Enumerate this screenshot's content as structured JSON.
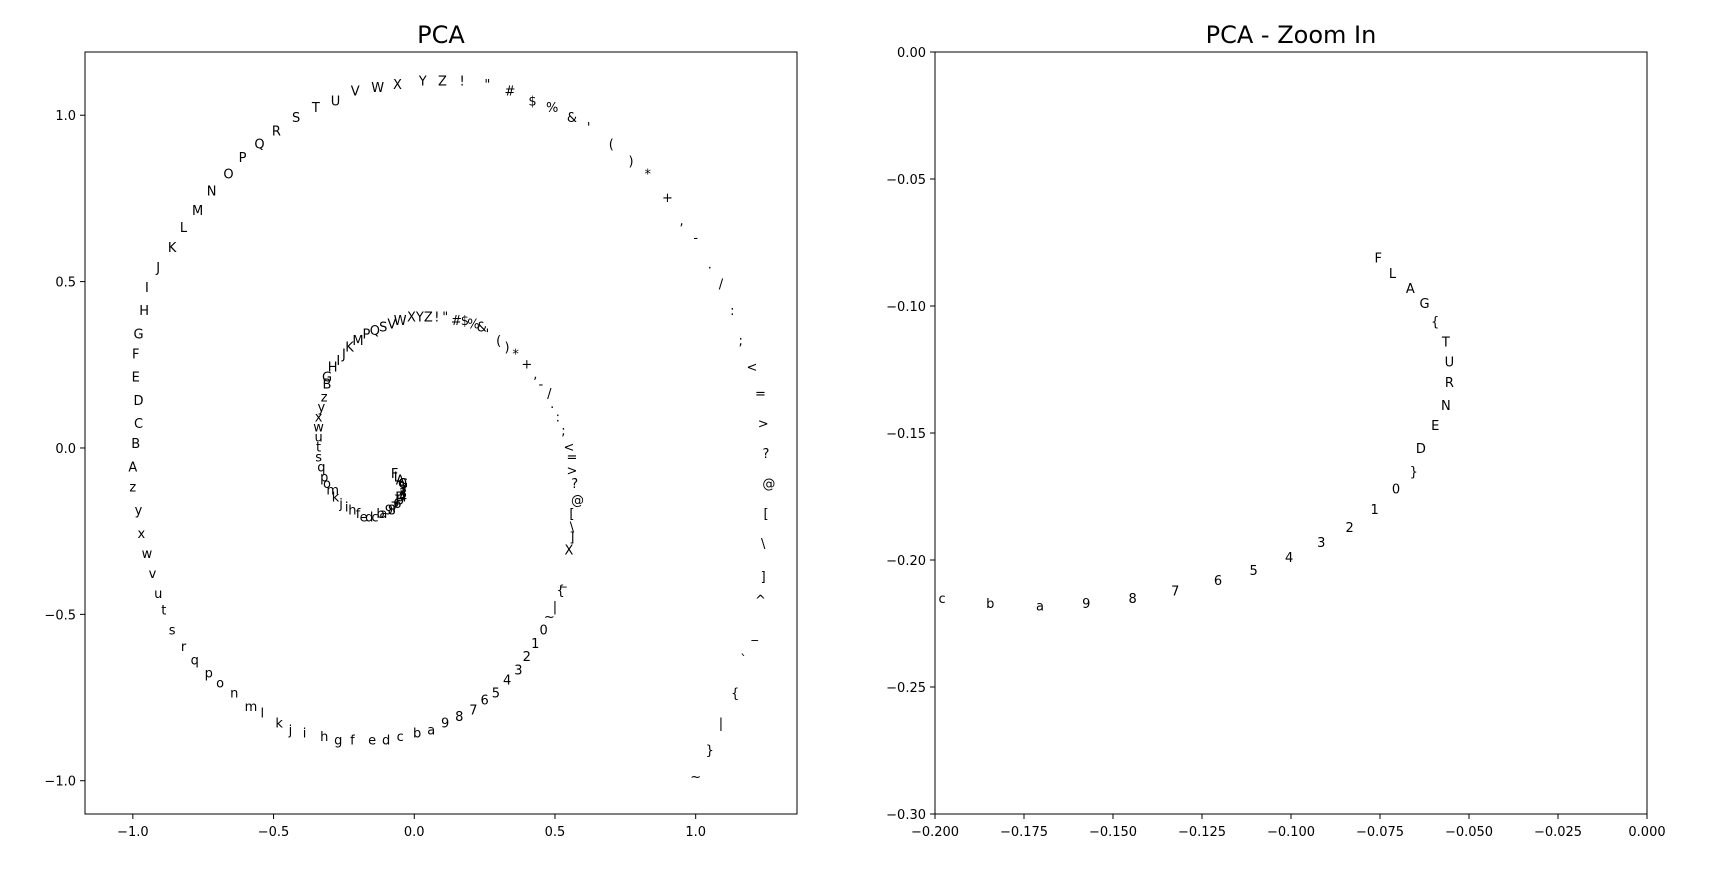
{
  "chart_data": [
    {
      "type": "scatter",
      "title": "PCA",
      "xlim": [
        -1.17,
        1.36
      ],
      "ylim": [
        -1.1,
        1.19
      ],
      "xticks": [
        -1.0,
        -0.5,
        0.0,
        0.5,
        1.0
      ],
      "xtick_labels": [
        "−1.0",
        "−0.5",
        "0.0",
        "0.5",
        "1.0"
      ],
      "yticks": [
        -1.0,
        -0.5,
        0.0,
        0.5,
        1.0
      ],
      "ytick_labels": [
        "−1.0",
        "−0.5",
        "0.0",
        "0.5",
        "1.0"
      ],
      "grid": false,
      "points": [
        {
          "label": "B",
          "x": -0.99,
          "y": 0.01
        },
        {
          "label": "C",
          "x": -0.98,
          "y": 0.07
        },
        {
          "label": "D",
          "x": -0.98,
          "y": 0.14
        },
        {
          "label": "E",
          "x": -0.99,
          "y": 0.21
        },
        {
          "label": "F",
          "x": -0.99,
          "y": 0.28
        },
        {
          "label": "G",
          "x": -0.98,
          "y": 0.34
        },
        {
          "label": "H",
          "x": -0.96,
          "y": 0.41
        },
        {
          "label": "I",
          "x": -0.95,
          "y": 0.48
        },
        {
          "label": "J",
          "x": -0.91,
          "y": 0.54
        },
        {
          "label": "K",
          "x": -0.86,
          "y": 0.6
        },
        {
          "label": "L",
          "x": -0.82,
          "y": 0.66
        },
        {
          "label": "M",
          "x": -0.77,
          "y": 0.71
        },
        {
          "label": "N",
          "x": -0.72,
          "y": 0.77
        },
        {
          "label": "O",
          "x": -0.66,
          "y": 0.82
        },
        {
          "label": "P",
          "x": -0.61,
          "y": 0.87
        },
        {
          "label": "Q",
          "x": -0.55,
          "y": 0.91
        },
        {
          "label": "R",
          "x": -0.49,
          "y": 0.95
        },
        {
          "label": "S",
          "x": -0.42,
          "y": 0.99
        },
        {
          "label": "T",
          "x": -0.35,
          "y": 1.02
        },
        {
          "label": "U",
          "x": -0.28,
          "y": 1.04
        },
        {
          "label": "V",
          "x": -0.21,
          "y": 1.07
        },
        {
          "label": "W",
          "x": -0.13,
          "y": 1.08
        },
        {
          "label": "X",
          "x": -0.06,
          "y": 1.09
        },
        {
          "label": "Y",
          "x": 0.03,
          "y": 1.1
        },
        {
          "label": "Z",
          "x": 0.1,
          "y": 1.1
        },
        {
          "label": "!",
          "x": 0.17,
          "y": 1.1
        },
        {
          "label": "\"",
          "x": 0.26,
          "y": 1.09
        },
        {
          "label": "#",
          "x": 0.34,
          "y": 1.07
        },
        {
          "label": "$",
          "x": 0.42,
          "y": 1.04
        },
        {
          "label": "%",
          "x": 0.49,
          "y": 1.02
        },
        {
          "label": "&",
          "x": 0.56,
          "y": 0.99
        },
        {
          "label": "'",
          "x": 0.62,
          "y": 0.96
        },
        {
          "label": "(",
          "x": 0.7,
          "y": 0.91
        },
        {
          "label": ")",
          "x": 0.77,
          "y": 0.86
        },
        {
          "label": "*",
          "x": 0.83,
          "y": 0.82
        },
        {
          "label": "+",
          "x": 0.9,
          "y": 0.75
        },
        {
          "label": ",",
          "x": 0.95,
          "y": 0.68
        },
        {
          "label": "-",
          "x": 1.0,
          "y": 0.63
        },
        {
          "label": ".",
          "x": 1.05,
          "y": 0.55
        },
        {
          "label": "/",
          "x": 1.09,
          "y": 0.49
        },
        {
          "label": ":",
          "x": 1.13,
          "y": 0.41
        },
        {
          "label": ";",
          "x": 1.16,
          "y": 0.32
        },
        {
          "label": "<",
          "x": 1.2,
          "y": 0.24
        },
        {
          "label": "=",
          "x": 1.23,
          "y": 0.16
        },
        {
          "label": ">",
          "x": 1.24,
          "y": 0.07
        },
        {
          "label": "?",
          "x": 1.25,
          "y": -0.02
        },
        {
          "label": "@",
          "x": 1.26,
          "y": -0.11
        },
        {
          "label": "[",
          "x": 1.25,
          "y": -0.2
        },
        {
          "label": "\\",
          "x": 1.24,
          "y": -0.29
        },
        {
          "label": "]",
          "x": 1.24,
          "y": -0.39
        },
        {
          "label": "^",
          "x": 1.23,
          "y": -0.46
        },
        {
          "label": "_",
          "x": 1.21,
          "y": -0.56
        },
        {
          "label": "`",
          "x": 1.17,
          "y": -0.64
        },
        {
          "label": "{",
          "x": 1.14,
          "y": -0.74
        },
        {
          "label": "|",
          "x": 1.09,
          "y": -0.83
        },
        {
          "label": "}",
          "x": 1.05,
          "y": -0.91
        },
        {
          "label": "~",
          "x": 1.0,
          "y": -0.99
        },
        {
          "label": "A",
          "x": -1.0,
          "y": -0.06
        },
        {
          "label": "z",
          "x": -1.0,
          "y": -0.12
        },
        {
          "label": "y",
          "x": -0.98,
          "y": -0.19
        },
        {
          "label": "x",
          "x": -0.97,
          "y": -0.26
        },
        {
          "label": "w",
          "x": -0.95,
          "y": -0.32
        },
        {
          "label": "v",
          "x": -0.93,
          "y": -0.38
        },
        {
          "label": "u",
          "x": -0.91,
          "y": -0.44
        },
        {
          "label": "t",
          "x": -0.89,
          "y": -0.49
        },
        {
          "label": "s",
          "x": -0.86,
          "y": -0.55
        },
        {
          "label": "r",
          "x": -0.82,
          "y": -0.6
        },
        {
          "label": "q",
          "x": -0.78,
          "y": -0.64
        },
        {
          "label": "p",
          "x": -0.73,
          "y": -0.68
        },
        {
          "label": "o",
          "x": -0.69,
          "y": -0.71
        },
        {
          "label": "n",
          "x": -0.64,
          "y": -0.74
        },
        {
          "label": "m",
          "x": -0.58,
          "y": -0.78
        },
        {
          "label": "l",
          "x": -0.54,
          "y": -0.8
        },
        {
          "label": "k",
          "x": -0.48,
          "y": -0.83
        },
        {
          "label": "j",
          "x": -0.44,
          "y": -0.85
        },
        {
          "label": "i",
          "x": -0.39,
          "y": -0.86
        },
        {
          "label": "h",
          "x": -0.32,
          "y": -0.87
        },
        {
          "label": "g",
          "x": -0.27,
          "y": -0.88
        },
        {
          "label": "f",
          "x": -0.22,
          "y": -0.88
        },
        {
          "label": "e",
          "x": -0.15,
          "y": -0.88
        },
        {
          "label": "d",
          "x": -0.1,
          "y": -0.88
        },
        {
          "label": "c",
          "x": -0.05,
          "y": -0.87
        },
        {
          "label": "b",
          "x": 0.01,
          "y": -0.86
        },
        {
          "label": "a",
          "x": 0.06,
          "y": -0.85
        },
        {
          "label": "9",
          "x": 0.11,
          "y": -0.83
        },
        {
          "label": "8",
          "x": 0.16,
          "y": -0.81
        },
        {
          "label": "7",
          "x": 0.21,
          "y": -0.79
        },
        {
          "label": "6",
          "x": 0.25,
          "y": -0.76
        },
        {
          "label": "5",
          "x": 0.29,
          "y": -0.74
        },
        {
          "label": "4",
          "x": 0.33,
          "y": -0.7
        },
        {
          "label": "3",
          "x": 0.37,
          "y": -0.67
        },
        {
          "label": "2",
          "x": 0.4,
          "y": -0.63
        },
        {
          "label": "1",
          "x": 0.43,
          "y": -0.59
        },
        {
          "label": "0",
          "x": 0.46,
          "y": -0.55
        },
        {
          "label": "~",
          "x": 0.48,
          "y": -0.51
        },
        {
          "label": "|",
          "x": 0.5,
          "y": -0.48
        },
        {
          "label": "{",
          "x": 0.52,
          "y": -0.43
        },
        {
          "label": "_",
          "x": 0.53,
          "y": -0.4
        },
        {
          "label": "X",
          "x": 0.55,
          "y": -0.31
        },
        {
          "label": "]",
          "x": 0.56,
          "y": -0.27
        },
        {
          "label": "\\",
          "x": 0.56,
          "y": -0.24
        },
        {
          "label": "[",
          "x": 0.56,
          "y": -0.2
        },
        {
          "label": "@",
          "x": 0.58,
          "y": -0.16
        },
        {
          "label": "?",
          "x": 0.57,
          "y": -0.11
        },
        {
          "label": ">",
          "x": 0.56,
          "y": -0.07
        },
        {
          "label": "=",
          "x": 0.56,
          "y": -0.03
        },
        {
          "label": "<",
          "x": 0.55,
          "y": 0.0
        },
        {
          "label": ";",
          "x": 0.53,
          "y": 0.05
        },
        {
          "label": ":",
          "x": 0.51,
          "y": 0.09
        },
        {
          "label": ".",
          "x": 0.49,
          "y": 0.13
        },
        {
          "label": "/",
          "x": 0.48,
          "y": 0.16
        },
        {
          "label": "-",
          "x": 0.45,
          "y": 0.19
        },
        {
          "label": ",",
          "x": 0.43,
          "y": 0.22
        },
        {
          "label": "+",
          "x": 0.4,
          "y": 0.25
        },
        {
          "label": "*",
          "x": 0.36,
          "y": 0.28
        },
        {
          "label": ")",
          "x": 0.33,
          "y": 0.3
        },
        {
          "label": "(",
          "x": 0.3,
          "y": 0.32
        },
        {
          "label": "'",
          "x": 0.26,
          "y": 0.34
        },
        {
          "label": "&",
          "x": 0.24,
          "y": 0.36
        },
        {
          "label": "%",
          "x": 0.21,
          "y": 0.37
        },
        {
          "label": "$",
          "x": 0.18,
          "y": 0.38
        },
        {
          "label": "#",
          "x": 0.15,
          "y": 0.38
        },
        {
          "label": "\"",
          "x": 0.11,
          "y": 0.39
        },
        {
          "label": "!",
          "x": 0.08,
          "y": 0.39
        },
        {
          "label": "Z",
          "x": 0.05,
          "y": 0.39
        },
        {
          "label": "Y",
          "x": 0.02,
          "y": 0.39
        },
        {
          "label": "X",
          "x": -0.01,
          "y": 0.39
        },
        {
          "label": "W",
          "x": -0.05,
          "y": 0.38
        },
        {
          "label": "V",
          "x": -0.08,
          "y": 0.37
        },
        {
          "label": "S",
          "x": -0.11,
          "y": 0.36
        },
        {
          "label": "Q",
          "x": -0.14,
          "y": 0.35
        },
        {
          "label": "P",
          "x": -0.17,
          "y": 0.34
        },
        {
          "label": "M",
          "x": -0.2,
          "y": 0.32
        },
        {
          "label": "K",
          "x": -0.23,
          "y": 0.3
        },
        {
          "label": "J",
          "x": -0.25,
          "y": 0.28
        },
        {
          "label": "I",
          "x": -0.27,
          "y": 0.26
        },
        {
          "label": "H",
          "x": -0.29,
          "y": 0.24
        },
        {
          "label": "G",
          "x": -0.31,
          "y": 0.21
        },
        {
          "label": "B",
          "x": -0.31,
          "y": 0.19
        },
        {
          "label": "z",
          "x": -0.32,
          "y": 0.15
        },
        {
          "label": "y",
          "x": -0.33,
          "y": 0.12
        },
        {
          "label": "x",
          "x": -0.34,
          "y": 0.09
        },
        {
          "label": "w",
          "x": -0.34,
          "y": 0.06
        },
        {
          "label": "u",
          "x": -0.34,
          "y": 0.03
        },
        {
          "label": "t",
          "x": -0.34,
          "y": 0.0
        },
        {
          "label": "s",
          "x": -0.34,
          "y": -0.03
        },
        {
          "label": "q",
          "x": -0.33,
          "y": -0.06
        },
        {
          "label": "p",
          "x": -0.32,
          "y": -0.09
        },
        {
          "label": "o",
          "x": -0.31,
          "y": -0.11
        },
        {
          "label": "m",
          "x": -0.29,
          "y": -0.13
        },
        {
          "label": "k",
          "x": -0.28,
          "y": -0.15
        },
        {
          "label": "j",
          "x": -0.26,
          "y": -0.17
        },
        {
          "label": "i",
          "x": -0.24,
          "y": -0.18
        },
        {
          "label": "h",
          "x": -0.22,
          "y": -0.19
        },
        {
          "label": "f",
          "x": -0.2,
          "y": -0.2
        },
        {
          "label": "e",
          "x": -0.18,
          "y": -0.21
        },
        {
          "label": "d",
          "x": -0.16,
          "y": -0.21
        },
        {
          "label": "c",
          "x": -0.14,
          "y": -0.21
        },
        {
          "label": "b",
          "x": -0.12,
          "y": -0.2
        },
        {
          "label": "a",
          "x": -0.11,
          "y": -0.2
        },
        {
          "label": "9",
          "x": -0.09,
          "y": -0.19
        },
        {
          "label": "8",
          "x": -0.08,
          "y": -0.19
        },
        {
          "label": "7",
          "x": -0.07,
          "y": -0.18
        },
        {
          "label": "6",
          "x": -0.06,
          "y": -0.17
        },
        {
          "label": "5",
          "x": -0.05,
          "y": -0.16
        },
        {
          "label": "4",
          "x": -0.04,
          "y": -0.15
        },
        {
          "label": "3",
          "x": -0.04,
          "y": -0.14
        },
        {
          "label": "2",
          "x": -0.04,
          "y": -0.13
        },
        {
          "label": "1",
          "x": -0.04,
          "y": -0.12
        },
        {
          "label": "0",
          "x": -0.04,
          "y": -0.11
        },
        {
          "label": "F",
          "x": -0.07,
          "y": -0.08
        },
        {
          "label": "L",
          "x": -0.06,
          "y": -0.09
        },
        {
          "label": "A",
          "x": -0.05,
          "y": -0.1
        },
        {
          "label": "G",
          "x": -0.04,
          "y": -0.11
        },
        {
          "label": "D",
          "x": -0.05,
          "y": -0.15
        },
        {
          "label": "}",
          "x": -0.06,
          "y": -0.16
        }
      ]
    },
    {
      "type": "scatter",
      "title": "PCA - Zoom In",
      "xlim": [
        -0.2,
        0.0
      ],
      "ylim": [
        -0.3,
        0.0
      ],
      "xticks": [
        -0.2,
        -0.175,
        -0.15,
        -0.125,
        -0.1,
        -0.075,
        -0.05,
        -0.025,
        0.0
      ],
      "xtick_labels": [
        "−0.200",
        "−0.175",
        "−0.150",
        "−0.125",
        "−0.100",
        "−0.075",
        "−0.050",
        "−0.025",
        "0.000"
      ],
      "yticks": [
        0.0,
        -0.05,
        -0.1,
        -0.15,
        -0.2,
        -0.25,
        -0.3
      ],
      "ytick_labels": [
        "0.00",
        "−0.05",
        "−0.10",
        "−0.15",
        "−0.20",
        "−0.25",
        "−0.30"
      ],
      "grid": false,
      "points": [
        {
          "label": "F",
          "x": -0.0755,
          "y": -0.0815
        },
        {
          "label": "L",
          "x": -0.0715,
          "y": -0.0875
        },
        {
          "label": "A",
          "x": -0.0665,
          "y": -0.0935
        },
        {
          "label": "G",
          "x": -0.0625,
          "y": -0.0995
        },
        {
          "label": "{",
          "x": -0.0595,
          "y": -0.1065
        },
        {
          "label": "T",
          "x": -0.0565,
          "y": -0.1145
        },
        {
          "label": "U",
          "x": -0.0555,
          "y": -0.1225
        },
        {
          "label": "R",
          "x": -0.0555,
          "y": -0.1305
        },
        {
          "label": "N",
          "x": -0.0565,
          "y": -0.1395
        },
        {
          "label": "E",
          "x": -0.0595,
          "y": -0.1475
        },
        {
          "label": "D",
          "x": -0.0635,
          "y": -0.1565
        },
        {
          "label": "}",
          "x": -0.0655,
          "y": -0.1655
        },
        {
          "label": "0",
          "x": -0.0705,
          "y": -0.1725
        },
        {
          "label": "1",
          "x": -0.0765,
          "y": -0.1805
        },
        {
          "label": "2",
          "x": -0.0835,
          "y": -0.1875
        },
        {
          "label": "3",
          "x": -0.0915,
          "y": -0.1935
        },
        {
          "label": "4",
          "x": -0.1005,
          "y": -0.1995
        },
        {
          "label": "5",
          "x": -0.1105,
          "y": -0.2045
        },
        {
          "label": "6",
          "x": -0.1205,
          "y": -0.2085
        },
        {
          "label": "7",
          "x": -0.1325,
          "y": -0.2125
        },
        {
          "label": "8",
          "x": -0.1445,
          "y": -0.2155
        },
        {
          "label": "9",
          "x": -0.1575,
          "y": -0.2175
        },
        {
          "label": "a",
          "x": -0.1705,
          "y": -0.2185
        },
        {
          "label": "b",
          "x": -0.1845,
          "y": -0.2175
        },
        {
          "label": "c",
          "x": -0.198,
          "y": -0.2155
        }
      ]
    }
  ]
}
